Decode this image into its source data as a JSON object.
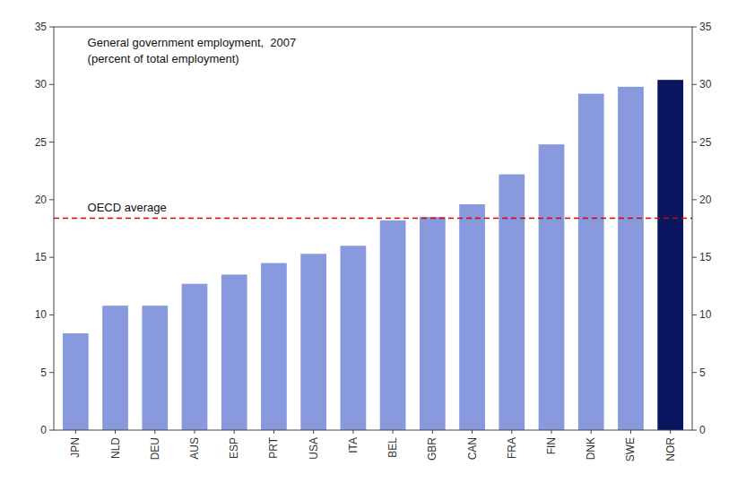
{
  "chart_data": {
    "type": "bar",
    "categories": [
      "JPN",
      "NLD",
      "DEU",
      "AUS",
      "ESP",
      "PRT",
      "USA",
      "ITA",
      "BEL",
      "GBR",
      "CAN",
      "FRA",
      "FIN",
      "DNK",
      "SWE",
      "NOR"
    ],
    "values": [
      8.4,
      10.8,
      10.8,
      12.7,
      13.5,
      14.5,
      15.3,
      16.0,
      18.2,
      18.5,
      19.6,
      22.2,
      24.8,
      29.2,
      29.8,
      30.4
    ],
    "colors": [
      "#8899dd",
      "#8899dd",
      "#8899dd",
      "#8899dd",
      "#8899dd",
      "#8899dd",
      "#8899dd",
      "#8899dd",
      "#8899dd",
      "#8899dd",
      "#8899dd",
      "#8899dd",
      "#8899dd",
      "#8899dd",
      "#8899dd",
      "#0a1560"
    ],
    "reference_line": {
      "value": 18.4,
      "label": "OECD average",
      "color": "#dd0000"
    },
    "annotations": [
      "General government employment,  2007",
      "(percent of total employment)"
    ],
    "ylim": [
      0,
      35
    ],
    "yticks": [
      0,
      5,
      10,
      15,
      20,
      25,
      30,
      35
    ],
    "y2lim": [
      0,
      35
    ],
    "y2ticks": [
      0,
      5,
      10,
      15,
      20,
      25,
      30,
      35
    ],
    "grid": false
  }
}
